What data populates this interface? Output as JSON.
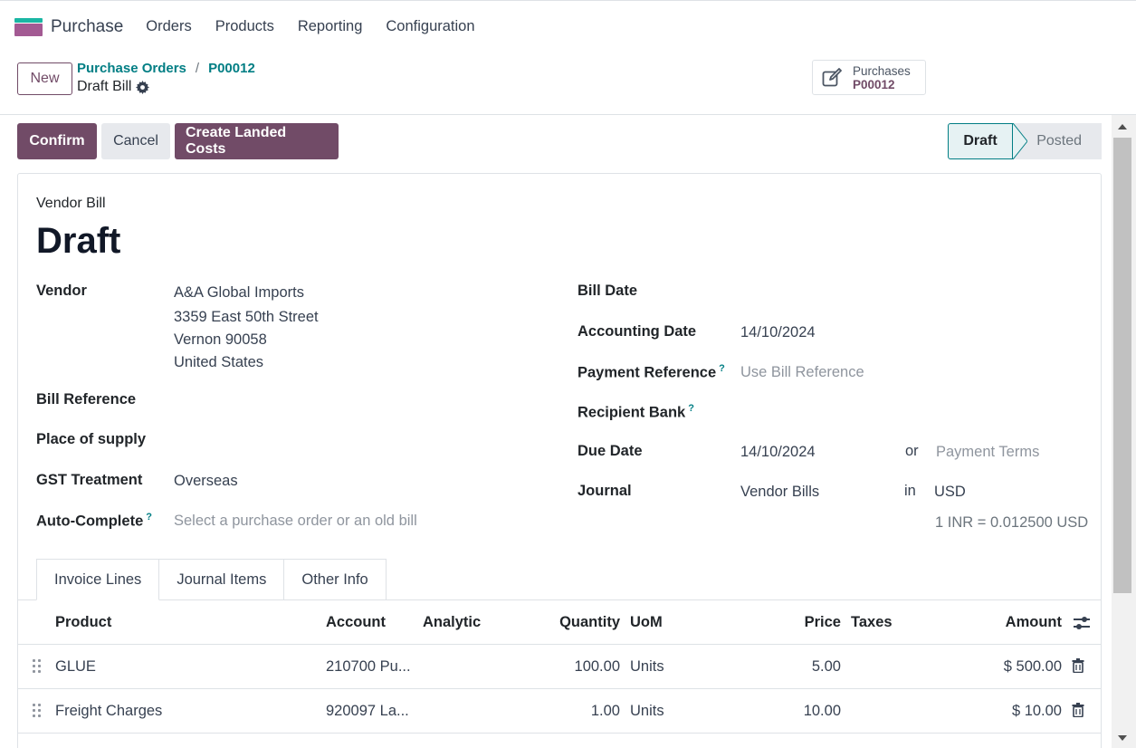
{
  "navbar": {
    "app_name": "Purchase",
    "menu": [
      "Orders",
      "Products",
      "Reporting",
      "Configuration"
    ]
  },
  "control": {
    "new_label": "New",
    "breadcrumb": [
      "Purchase Orders",
      "P00012"
    ],
    "separator": "/",
    "subtitle": "Draft Bill",
    "smart_button": {
      "label": "Purchases",
      "value": "P00012"
    }
  },
  "actions": {
    "confirm": "Confirm",
    "cancel": "Cancel",
    "landed_costs": "Create Landed Costs"
  },
  "status": {
    "steps": [
      "Draft",
      "Posted"
    ],
    "current": "Draft"
  },
  "form": {
    "doc_type": "Vendor Bill",
    "title": "Draft",
    "vendor_label": "Vendor",
    "vendor_lines": [
      "A&A Global Imports",
      "3359 East 50th Street",
      "Vernon 90058",
      "United States"
    ],
    "bill_reference_label": "Bill Reference",
    "place_of_supply_label": "Place of supply",
    "gst_treatment_label": "GST Treatment",
    "gst_treatment_value": "Overseas",
    "auto_complete_label": "Auto-Complete",
    "auto_complete_placeholder": "Select a purchase order or an old bill",
    "help_mark": "?",
    "bill_date_label": "Bill Date",
    "accounting_date_label": "Accounting Date",
    "accounting_date_value": "14/10/2024",
    "payment_reference_label": "Payment Reference",
    "payment_reference_placeholder": "Use Bill Reference",
    "recipient_bank_label": "Recipient Bank",
    "due_date_label": "Due Date",
    "due_date_value": "14/10/2024",
    "or_text": "or",
    "payment_terms_placeholder": "Payment Terms",
    "journal_label": "Journal",
    "journal_value": "Vendor Bills",
    "in_text": "in",
    "currency": "USD",
    "rate_text": "1 INR = 0.012500 USD"
  },
  "tabs": [
    "Invoice Lines",
    "Journal Items",
    "Other Info"
  ],
  "table": {
    "columns": {
      "product": "Product",
      "account": "Account",
      "analytic": "Analytic",
      "quantity": "Quantity",
      "uom": "UoM",
      "price": "Price",
      "taxes": "Taxes",
      "amount": "Amount"
    },
    "rows": [
      {
        "product": "GLUE",
        "account": "210700 Pu...",
        "quantity": "100.00",
        "uom": "Units",
        "price": "5.00",
        "amount": "$ 500.00"
      },
      {
        "product": "Freight Charges",
        "account": "920097 La...",
        "quantity": "1.00",
        "uom": "Units",
        "price": "10.00",
        "amount": "$ 10.00"
      }
    ]
  }
}
